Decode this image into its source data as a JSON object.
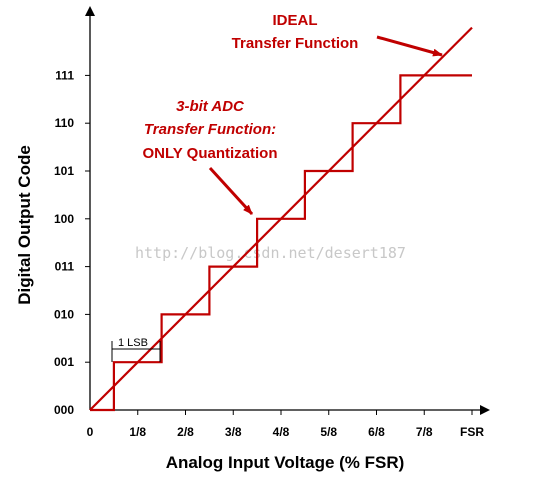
{
  "chart_data": {
    "type": "line",
    "xlabel": "Analog Input Voltage (% FSR)",
    "ylabel": "Digital Output Code",
    "x_ticks": [
      "0",
      "1/8",
      "2/8",
      "3/8",
      "4/8",
      "5/8",
      "6/8",
      "7/8",
      "FSR"
    ],
    "y_ticks": [
      "000",
      "001",
      "010",
      "011",
      "100",
      "101",
      "110",
      "111"
    ],
    "xlim": [
      0,
      1.05
    ],
    "ylim": [
      0,
      8.0
    ],
    "series": [
      {
        "kind": "ideal",
        "color": "#c00000",
        "points": [
          [
            0,
            0
          ],
          [
            1.0,
            8.0
          ]
        ]
      },
      {
        "kind": "staircase",
        "color": "#c00000",
        "points": [
          [
            0,
            0
          ],
          [
            0.0625,
            0
          ],
          [
            0.0625,
            1
          ],
          [
            0.1875,
            1
          ],
          [
            0.1875,
            2
          ],
          [
            0.3125,
            2
          ],
          [
            0.3125,
            3
          ],
          [
            0.4375,
            3
          ],
          [
            0.4375,
            4
          ],
          [
            0.5625,
            4
          ],
          [
            0.5625,
            5
          ],
          [
            0.6875,
            5
          ],
          [
            0.6875,
            6
          ],
          [
            0.8125,
            6
          ],
          [
            0.8125,
            7
          ],
          [
            1.0,
            7
          ]
        ]
      }
    ],
    "annotations": {
      "ideal_lines": [
        "IDEAL",
        "Transfer Function"
      ],
      "adc_lines": [
        "3-bit ADC",
        "Transfer Function:",
        "ONLY Quantization"
      ],
      "lsb_label": "1 LSB"
    },
    "watermark": "http://blog.csdn.net/desert187",
    "grid": false
  }
}
